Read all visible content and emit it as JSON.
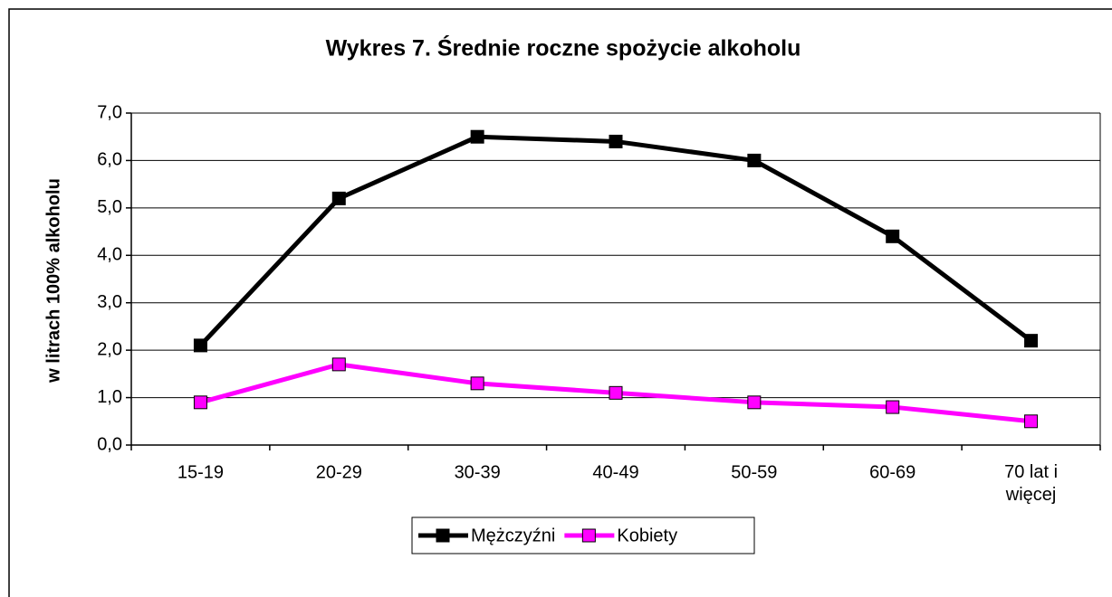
{
  "chart_data": {
    "type": "line",
    "title": "Wykres 7. Średnie roczne spożycie alkoholu",
    "y_label": "w litrach 100% alkoholu",
    "categories": [
      "15-19",
      "20-29",
      "30-39",
      "40-49",
      "50-59",
      "60-69",
      "70 lat i więcej"
    ],
    "series": [
      {
        "name": "Mężczyźni",
        "color": "#000000",
        "values": [
          2.1,
          5.2,
          6.5,
          6.4,
          6.0,
          4.4,
          2.2
        ]
      },
      {
        "name": "Kobiety",
        "color": "#ff00ff",
        "values": [
          0.9,
          1.7,
          1.3,
          1.1,
          0.9,
          0.8,
          0.5
        ]
      }
    ],
    "ylim": [
      0,
      7
    ],
    "yticks": [
      {
        "value": 0,
        "label": "0,0"
      },
      {
        "value": 1,
        "label": "1,0"
      },
      {
        "value": 2,
        "label": "2,0"
      },
      {
        "value": 3,
        "label": "3,0"
      },
      {
        "value": 4,
        "label": "4,0"
      },
      {
        "value": 5,
        "label": "5,0"
      },
      {
        "value": 6,
        "label": "6,0"
      },
      {
        "value": 7,
        "label": "7,0"
      }
    ],
    "grid": true,
    "legend": "bottom"
  }
}
